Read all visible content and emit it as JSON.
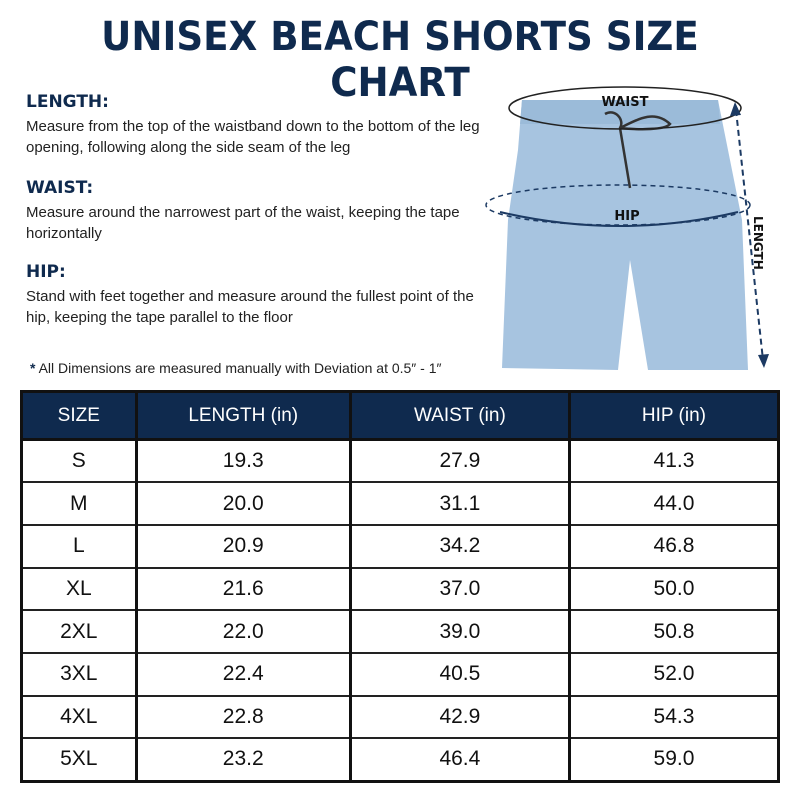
{
  "title": "UNISEX BEACH SHORTS SIZE CHART",
  "instructions": [
    {
      "heading": "LENGTH:",
      "text": "Measure from the top of the waistband down to the bottom of the leg opening, following along the side seam of the leg"
    },
    {
      "heading": "WAIST:",
      "text": "Measure around the narrowest part of the waist, keeping the tape horizontally"
    },
    {
      "heading": "HIP:",
      "text": "Stand with feet together and measure around the fullest point of the hip, keeping the tape parallel to the floor"
    }
  ],
  "note": {
    "symbol": "*",
    "text": "All Dimensions are measured manually with Deviation at 0.5″ - 1″"
  },
  "diagram": {
    "waist_label": "WAIST",
    "hip_label": "HIP",
    "length_label": "LENGTH",
    "garment_color": "#a7c4e0"
  },
  "table": {
    "headers": [
      "SIZE",
      "LENGTH (in)",
      "WAIST (in)",
      "HIP (in)"
    ],
    "rows": [
      [
        "S",
        "19.3",
        "27.9",
        "41.3"
      ],
      [
        "M",
        "20.0",
        "31.1",
        "44.0"
      ],
      [
        "L",
        "20.9",
        "34.2",
        "46.8"
      ],
      [
        "XL",
        "21.6",
        "37.0",
        "50.0"
      ],
      [
        "2XL",
        "22.0",
        "39.0",
        "50.8"
      ],
      [
        "3XL",
        "22.4",
        "40.5",
        "52.0"
      ],
      [
        "4XL",
        "22.8",
        "42.9",
        "54.3"
      ],
      [
        "5XL",
        "23.2",
        "46.4",
        "59.0"
      ]
    ]
  },
  "colors": {
    "navy": "#0f2a4e"
  }
}
